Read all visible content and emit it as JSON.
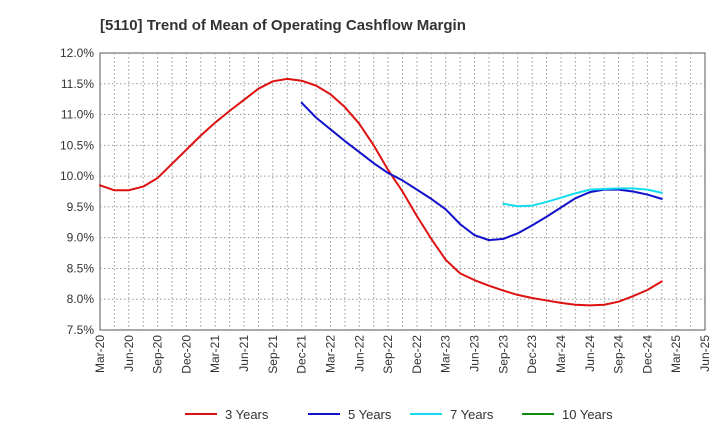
{
  "chart_data": {
    "type": "line",
    "title": "[5110]  Trend of Mean of Operating Cashflow Margin",
    "xlabel": "",
    "ylabel": "",
    "ylim": [
      7.5,
      12.0
    ],
    "yticks": [
      7.5,
      8.0,
      8.5,
      9.0,
      9.5,
      10.0,
      10.5,
      11.0,
      11.5,
      12.0
    ],
    "ytick_labels": [
      "7.5%",
      "8.0%",
      "8.5%",
      "9.0%",
      "9.5%",
      "10.0%",
      "10.5%",
      "11.0%",
      "11.5%",
      "12.0%"
    ],
    "x_labels": [
      "Mar-20",
      "Jun-20",
      "Sep-20",
      "Dec-20",
      "Mar-21",
      "Jun-21",
      "Sep-21",
      "Dec-21",
      "Mar-22",
      "Jun-22",
      "Sep-22",
      "Dec-22",
      "Mar-23",
      "Jun-23",
      "Sep-23",
      "Dec-23",
      "Mar-24",
      "Jun-24",
      "Sep-24",
      "Dec-24",
      "Mar-25",
      "Jun-25"
    ],
    "grid": true,
    "legend_position": "bottom",
    "series": [
      {
        "name": "3 Years",
        "color": "#dd1111",
        "start_index": 0,
        "values": [
          9.85,
          9.77,
          9.77,
          9.83,
          9.97,
          10.2,
          10.43,
          10.66,
          10.87,
          11.06,
          11.24,
          11.42,
          11.54,
          11.58,
          11.55,
          11.47,
          11.33,
          11.12,
          10.85,
          10.5,
          10.1,
          9.75,
          9.35,
          8.98,
          8.64,
          8.42,
          8.31,
          8.22,
          8.14,
          8.07,
          8.02,
          7.98,
          7.94,
          7.91,
          7.9,
          7.91,
          7.96,
          8.05,
          8.15,
          8.29
        ]
      },
      {
        "name": "5 Years",
        "color": "#1111cc",
        "start_index": 14,
        "values": [
          11.19,
          10.95,
          10.76,
          10.57,
          10.39,
          10.21,
          10.05,
          9.93,
          9.78,
          9.63,
          9.46,
          9.22,
          9.04,
          8.96,
          8.98,
          9.07,
          9.2,
          9.34,
          9.49,
          9.64,
          9.74,
          9.78,
          9.78,
          9.75,
          9.7,
          9.63
        ]
      },
      {
        "name": "7 Years",
        "color": "#11ddee",
        "start_index": 28,
        "values": [
          9.55,
          9.51,
          9.52,
          9.58,
          9.65,
          9.72,
          9.78,
          9.79,
          9.8,
          9.8,
          9.78,
          9.73
        ]
      },
      {
        "name": "10 Years",
        "color": "#118811",
        "start_index": 0,
        "values": []
      }
    ]
  }
}
